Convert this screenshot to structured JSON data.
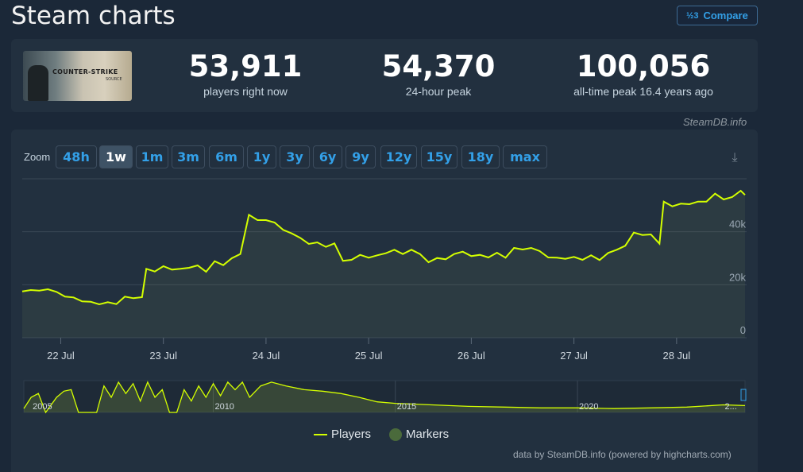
{
  "page": {
    "title": "Steam charts",
    "compare_label": "Compare",
    "source": "SteamDB.info"
  },
  "game": {
    "logo_text": "COUNTER-STRIKE",
    "logo_sub": "SOURCE"
  },
  "stats": [
    {
      "value": "53,911",
      "label": "players right now"
    },
    {
      "value": "54,370",
      "label": "24-hour peak"
    },
    {
      "value": "100,056",
      "label": "all-time peak 16.4 years ago"
    }
  ],
  "zoom": {
    "label": "Zoom",
    "options": [
      "48h",
      "1w",
      "1m",
      "3m",
      "6m",
      "1y",
      "3y",
      "6y",
      "9y",
      "12y",
      "15y",
      "18y",
      "max"
    ],
    "selected": "1w"
  },
  "legend": {
    "players": "Players",
    "markers": "Markers"
  },
  "credits": "data by SteamDB.info (powered by highcharts.com)",
  "colors": {
    "series": "#d4ff00",
    "markers": "#4a6a3b",
    "grid": "#3a4756"
  },
  "chart_data": {
    "type": "line",
    "ylim": [
      0,
      60000
    ],
    "yticks": [
      0,
      20000,
      40000
    ],
    "ytick_labels": [
      "0",
      "20k",
      "40k"
    ],
    "x_start": "2024-07-21T15:00",
    "x_end": "2024-07-28T16:00",
    "xticks": [
      "22 Jul",
      "23 Jul",
      "24 Jul",
      "25 Jul",
      "26 Jul",
      "27 Jul",
      "28 Jul"
    ],
    "xtick_dates": [
      "2024-07-22",
      "2024-07-23",
      "2024-07-24",
      "2024-07-25",
      "2024-07-26",
      "2024-07-27",
      "2024-07-28"
    ],
    "series": [
      {
        "name": "Players",
        "points": [
          [
            "2024-07-21T15:00",
            17500
          ],
          [
            "2024-07-21T17:00",
            18000
          ],
          [
            "2024-07-21T19:00",
            17800
          ],
          [
            "2024-07-21T21:00",
            18300
          ],
          [
            "2024-07-21T23:00",
            17300
          ],
          [
            "2024-07-22T01:00",
            15500
          ],
          [
            "2024-07-22T03:00",
            15200
          ],
          [
            "2024-07-22T05:00",
            13700
          ],
          [
            "2024-07-22T07:00",
            13600
          ],
          [
            "2024-07-22T09:00",
            12600
          ],
          [
            "2024-07-22T11:00",
            13400
          ],
          [
            "2024-07-22T13:00",
            12700
          ],
          [
            "2024-07-22T15:00",
            15500
          ],
          [
            "2024-07-22T17:00",
            14900
          ],
          [
            "2024-07-22T19:00",
            15300
          ],
          [
            "2024-07-22T20:00",
            26000
          ],
          [
            "2024-07-22T22:00",
            25000
          ],
          [
            "2024-07-23T00:00",
            27000
          ],
          [
            "2024-07-23T02:00",
            25700
          ],
          [
            "2024-07-23T04:00",
            26000
          ],
          [
            "2024-07-23T06:00",
            26400
          ],
          [
            "2024-07-23T08:00",
            27300
          ],
          [
            "2024-07-23T10:00",
            24900
          ],
          [
            "2024-07-23T12:00",
            28900
          ],
          [
            "2024-07-23T14:00",
            27400
          ],
          [
            "2024-07-23T16:00",
            30000
          ],
          [
            "2024-07-23T18:00",
            31600
          ],
          [
            "2024-07-23T20:00",
            46400
          ],
          [
            "2024-07-23T22:00",
            44400
          ],
          [
            "2024-07-24T00:00",
            44400
          ],
          [
            "2024-07-24T02:00",
            43500
          ],
          [
            "2024-07-24T04:00",
            40700
          ],
          [
            "2024-07-24T06:00",
            39400
          ],
          [
            "2024-07-24T08:00",
            37700
          ],
          [
            "2024-07-24T10:00",
            35400
          ],
          [
            "2024-07-24T12:00",
            36000
          ],
          [
            "2024-07-24T14:00",
            34300
          ],
          [
            "2024-07-24T16:00",
            35600
          ],
          [
            "2024-07-24T18:00",
            29000
          ],
          [
            "2024-07-24T20:00",
            29400
          ],
          [
            "2024-07-24T22:00",
            31300
          ],
          [
            "2024-07-25T00:00",
            30200
          ],
          [
            "2024-07-25T02:00",
            31100
          ],
          [
            "2024-07-25T04:00",
            31900
          ],
          [
            "2024-07-25T06:00",
            33200
          ],
          [
            "2024-07-25T08:00",
            31600
          ],
          [
            "2024-07-25T10:00",
            33200
          ],
          [
            "2024-07-25T12:00",
            31600
          ],
          [
            "2024-07-25T14:00",
            28500
          ],
          [
            "2024-07-25T16:00",
            30100
          ],
          [
            "2024-07-25T18:00",
            29600
          ],
          [
            "2024-07-25T20:00",
            31600
          ],
          [
            "2024-07-25T22:00",
            32500
          ],
          [
            "2024-07-26T00:00",
            30800
          ],
          [
            "2024-07-26T02:00",
            31300
          ],
          [
            "2024-07-26T04:00",
            30300
          ],
          [
            "2024-07-26T06:00",
            32100
          ],
          [
            "2024-07-26T08:00",
            30200
          ],
          [
            "2024-07-26T10:00",
            33900
          ],
          [
            "2024-07-26T12:00",
            33300
          ],
          [
            "2024-07-26T14:00",
            33900
          ],
          [
            "2024-07-26T16:00",
            32700
          ],
          [
            "2024-07-26T18:00",
            30300
          ],
          [
            "2024-07-26T20:00",
            30200
          ],
          [
            "2024-07-26T22:00",
            29800
          ],
          [
            "2024-07-27T00:00",
            30500
          ],
          [
            "2024-07-27T02:00",
            29400
          ],
          [
            "2024-07-27T04:00",
            31100
          ],
          [
            "2024-07-27T06:00",
            29300
          ],
          [
            "2024-07-27T08:00",
            32000
          ],
          [
            "2024-07-27T10:00",
            33200
          ],
          [
            "2024-07-27T12:00",
            34700
          ],
          [
            "2024-07-27T14:00",
            39700
          ],
          [
            "2024-07-27T16:00",
            38800
          ],
          [
            "2024-07-27T18:00",
            39000
          ],
          [
            "2024-07-27T20:00",
            35500
          ],
          [
            "2024-07-27T21:00",
            51400
          ],
          [
            "2024-07-27T23:00",
            49600
          ],
          [
            "2024-07-28T01:00",
            50600
          ],
          [
            "2024-07-28T03:00",
            50400
          ],
          [
            "2024-07-28T05:00",
            51400
          ],
          [
            "2024-07-28T07:00",
            51400
          ],
          [
            "2024-07-28T09:00",
            54400
          ],
          [
            "2024-07-28T11:00",
            52200
          ],
          [
            "2024-07-28T13:00",
            53100
          ],
          [
            "2024-07-28T15:00",
            55500
          ],
          [
            "2024-07-28T16:00",
            53900
          ]
        ]
      }
    ],
    "navigator": {
      "xticks": [
        "2005",
        "2010",
        "2015",
        "2020",
        "2..."
      ],
      "points": [
        [
          2004.8,
          5
        ],
        [
          2005.0,
          20
        ],
        [
          2005.2,
          25
        ],
        [
          2005.4,
          0
        ],
        [
          2005.7,
          20
        ],
        [
          2005.9,
          28
        ],
        [
          2006.1,
          30
        ],
        [
          2006.3,
          0
        ],
        [
          2006.8,
          0
        ],
        [
          2007.0,
          35
        ],
        [
          2007.2,
          20
        ],
        [
          2007.4,
          40
        ],
        [
          2007.6,
          25
        ],
        [
          2007.8,
          38
        ],
        [
          2008.0,
          15
        ],
        [
          2008.2,
          40
        ],
        [
          2008.4,
          20
        ],
        [
          2008.6,
          30
        ],
        [
          2008.8,
          0
        ],
        [
          2009.0,
          0
        ],
        [
          2009.2,
          30
        ],
        [
          2009.4,
          15
        ],
        [
          2009.6,
          35
        ],
        [
          2009.8,
          20
        ],
        [
          2010.0,
          38
        ],
        [
          2010.2,
          22
        ],
        [
          2010.4,
          40
        ],
        [
          2010.6,
          30
        ],
        [
          2010.8,
          40
        ],
        [
          2011.0,
          20
        ],
        [
          2011.3,
          35
        ],
        [
          2011.6,
          40
        ],
        [
          2012.0,
          35
        ],
        [
          2012.5,
          30
        ],
        [
          2013.0,
          28
        ],
        [
          2013.5,
          25
        ],
        [
          2014.0,
          20
        ],
        [
          2014.5,
          14
        ],
        [
          2015.0,
          12
        ],
        [
          2016.0,
          10
        ],
        [
          2017.0,
          8
        ],
        [
          2018.0,
          7
        ],
        [
          2019.0,
          6
        ],
        [
          2020.0,
          6
        ],
        [
          2021.0,
          5
        ],
        [
          2022.0,
          6
        ],
        [
          2023.0,
          7
        ],
        [
          2024.0,
          10
        ],
        [
          2024.6,
          9
        ]
      ]
    }
  }
}
